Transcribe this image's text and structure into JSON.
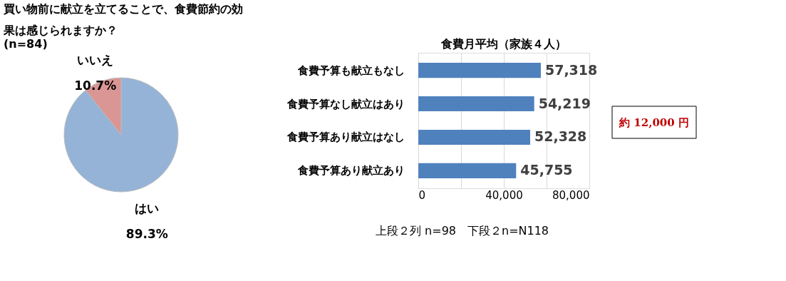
{
  "chart_data": [
    {
      "type": "pie",
      "title": "買い物前に献立を立てることで、食費節約の効果は感じられますか？",
      "subtitle": "(n=84)",
      "categories": [
        "はい",
        "いいえ"
      ],
      "values": [
        89.3,
        10.7
      ],
      "colors": [
        "#95b3d7",
        "#d99694"
      ],
      "value_labels": [
        "89.3%",
        "10.7%"
      ],
      "legend": false
    },
    {
      "type": "bar",
      "orientation": "horizontal",
      "title": "食費月平均（家族４人）",
      "categories": [
        "食費予算も献立もなし",
        "食費予算なし献立はあり",
        "食費予算あり献立はなし",
        "食費予算あり献立あり"
      ],
      "values": [
        57318,
        54219,
        52328,
        45755
      ],
      "color": "#4f81bd",
      "xlim": [
        0,
        80000
      ],
      "xticks": [
        0,
        {
          "value": 20000,
          "label": null
        },
        {
          "value": 40000,
          "label": "40,000"
        },
        {
          "value": 60000,
          "label": null
        },
        {
          "value": 80000,
          "label": "80,000"
        }
      ],
      "grid": "x",
      "value_labels": [
        "57,318",
        "54,219",
        "52,328",
        "45,755"
      ],
      "annotations": [
        "約 12,000 円",
        "上段２列 n=98　下段２n=N118"
      ]
    }
  ]
}
